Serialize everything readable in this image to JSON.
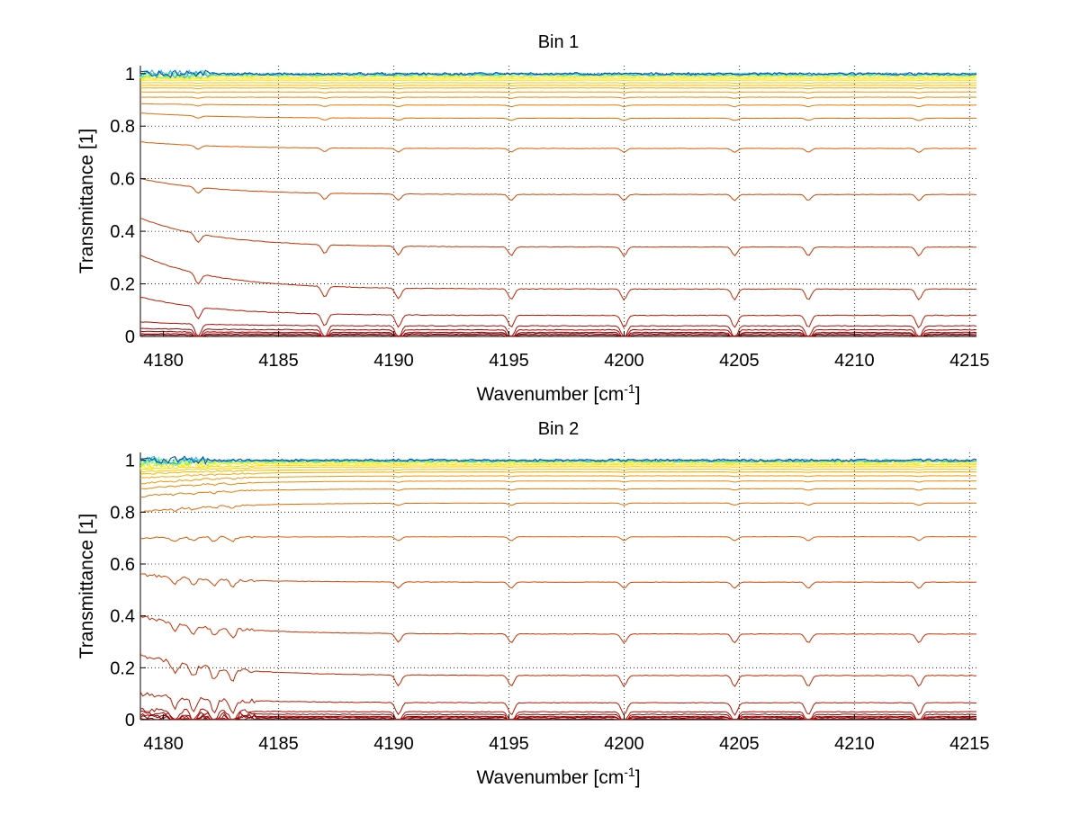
{
  "chart_data": [
    {
      "type": "line",
      "title": "Bin 1",
      "xlabel": "Wavenumber [cm",
      "xlabel_sup": "-1",
      "xlabel_end": "]",
      "ylabel": "Transmittance [1]",
      "xlim": [
        4179,
        4215.3
      ],
      "ylim": [
        0,
        1.03
      ],
      "xticks": [
        4180,
        4185,
        4190,
        4195,
        4200,
        4205,
        4210,
        4215
      ],
      "yticks": [
        0,
        0.2,
        0.4,
        0.6,
        0.8,
        1
      ],
      "xtick_labels": [
        "4180",
        "4185",
        "4190",
        "4195",
        "4200",
        "4205",
        "4210",
        "4215"
      ],
      "ytick_labels": [
        "0",
        "0.2",
        "0.4",
        "0.6",
        "0.8",
        "1"
      ],
      "grid": true,
      "colormap": "jet",
      "dips": [
        4181.5,
        4187,
        4190.2,
        4195.1,
        4200,
        4204.8,
        4208,
        4212.8
      ],
      "series": [
        {
          "start": 0.005,
          "level": 0.005,
          "color": "#800000"
        },
        {
          "start": 0.01,
          "level": 0.01,
          "color": "#8a0000"
        },
        {
          "start": 0.02,
          "level": 0.015,
          "color": "#960000"
        },
        {
          "start": 0.03,
          "level": 0.025,
          "color": "#a00000"
        },
        {
          "start": 0.055,
          "level": 0.04,
          "color": "#b00a00"
        },
        {
          "start": 0.15,
          "level": 0.08,
          "color": "#b81800"
        },
        {
          "start": 0.31,
          "level": 0.18,
          "color": "#c02600"
        },
        {
          "start": 0.45,
          "level": 0.34,
          "color": "#c83200"
        },
        {
          "start": 0.6,
          "level": 0.54,
          "color": "#d24400"
        },
        {
          "start": 0.74,
          "level": 0.715,
          "color": "#de5a00"
        },
        {
          "start": 0.85,
          "level": 0.83,
          "color": "#e56a00"
        },
        {
          "start": 0.885,
          "level": 0.88,
          "color": "#ea7800"
        },
        {
          "start": 0.91,
          "level": 0.91,
          "color": "#ee8800"
        },
        {
          "start": 0.93,
          "level": 0.93,
          "color": "#f29800"
        },
        {
          "start": 0.945,
          "level": 0.945,
          "color": "#f5a800"
        },
        {
          "start": 0.955,
          "level": 0.955,
          "color": "#f8b800"
        },
        {
          "start": 0.965,
          "level": 0.965,
          "color": "#fbc800"
        },
        {
          "start": 0.975,
          "level": 0.975,
          "color": "#fdd800"
        },
        {
          "start": 0.982,
          "level": 0.982,
          "color": "#ffe800"
        },
        {
          "start": 0.988,
          "level": 0.988,
          "color": "#f0f020"
        },
        {
          "start": 0.992,
          "level": 0.992,
          "color": "#c0f040"
        },
        {
          "start": 0.995,
          "level": 0.995,
          "color": "#80f080"
        },
        {
          "start": 0.997,
          "level": 0.997,
          "color": "#40e0c0"
        },
        {
          "start": 0.998,
          "level": 0.998,
          "color": "#20b0e0"
        },
        {
          "start": 0.999,
          "level": 0.999,
          "color": "#0040c0"
        }
      ]
    },
    {
      "type": "line",
      "title": "Bin 2",
      "xlabel": "Wavenumber [cm",
      "xlabel_sup": "-1",
      "xlabel_end": "]",
      "ylabel": "Transmittance [1]",
      "xlim": [
        4179,
        4215.3
      ],
      "ylim": [
        0,
        1.03
      ],
      "xticks": [
        4180,
        4185,
        4190,
        4195,
        4200,
        4205,
        4210,
        4215
      ],
      "yticks": [
        0,
        0.2,
        0.4,
        0.6,
        0.8,
        1
      ],
      "xtick_labels": [
        "4180",
        "4185",
        "4190",
        "4195",
        "4200",
        "4205",
        "4210",
        "4215"
      ],
      "ytick_labels": [
        "0",
        "0.2",
        "0.4",
        "0.6",
        "0.8",
        "1"
      ],
      "grid": true,
      "colormap": "jet",
      "dips": [
        4180.5,
        4181.3,
        4182.2,
        4183.0,
        4190.2,
        4195.1,
        4200,
        4204.8,
        4208,
        4212.8
      ],
      "series": [
        {
          "start": 0.005,
          "level": 0.003,
          "color": "#800000"
        },
        {
          "start": 0.01,
          "level": 0.008,
          "color": "#8a0000"
        },
        {
          "start": 0.015,
          "level": 0.012,
          "color": "#960000"
        },
        {
          "start": 0.025,
          "level": 0.02,
          "color": "#a00000"
        },
        {
          "start": 0.04,
          "level": 0.03,
          "color": "#b00a00"
        },
        {
          "start": 0.1,
          "level": 0.065,
          "color": "#b81800"
        },
        {
          "start": 0.25,
          "level": 0.17,
          "color": "#c02600"
        },
        {
          "start": 0.4,
          "level": 0.33,
          "color": "#c83200"
        },
        {
          "start": 0.56,
          "level": 0.53,
          "color": "#d24400"
        },
        {
          "start": 0.7,
          "level": 0.705,
          "color": "#de5a00"
        },
        {
          "start": 0.8,
          "level": 0.835,
          "color": "#e56a00"
        },
        {
          "start": 0.86,
          "level": 0.89,
          "color": "#ea7800"
        },
        {
          "start": 0.89,
          "level": 0.92,
          "color": "#ee8800"
        },
        {
          "start": 0.91,
          "level": 0.94,
          "color": "#f29800"
        },
        {
          "start": 0.93,
          "level": 0.955,
          "color": "#f5a800"
        },
        {
          "start": 0.945,
          "level": 0.965,
          "color": "#f8b800"
        },
        {
          "start": 0.955,
          "level": 0.975,
          "color": "#fbc800"
        },
        {
          "start": 0.965,
          "level": 0.982,
          "color": "#fdd800"
        },
        {
          "start": 0.975,
          "level": 0.988,
          "color": "#ffe800"
        },
        {
          "start": 0.985,
          "level": 0.992,
          "color": "#f0f020"
        },
        {
          "start": 0.99,
          "level": 0.995,
          "color": "#c0f040"
        },
        {
          "start": 0.994,
          "level": 0.997,
          "color": "#80f080"
        },
        {
          "start": 0.996,
          "level": 0.998,
          "color": "#40e0c0"
        },
        {
          "start": 0.998,
          "level": 0.999,
          "color": "#20b0e0"
        },
        {
          "start": 0.999,
          "level": 1.0,
          "color": "#0040c0"
        }
      ]
    }
  ]
}
